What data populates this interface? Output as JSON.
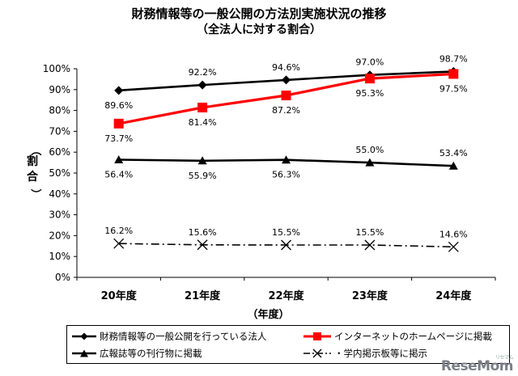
{
  "chart_data": {
    "type": "line",
    "title": "財務情報等の一般公開の方法別実施状況の推移",
    "subtitle": "（全法人に対する割合）",
    "xlabel": "（年度）",
    "ylabel": "割合",
    "ylabel_paren_open": "（",
    "ylabel_paren_close": "）",
    "categories": [
      "20年度",
      "21年度",
      "22年度",
      "23年度",
      "24年度"
    ],
    "ylim": [
      0,
      100
    ],
    "yticks": [
      "0%",
      "10%",
      "20%",
      "30%",
      "40%",
      "50%",
      "60%",
      "70%",
      "80%",
      "90%",
      "100%"
    ],
    "legend_position": "bottom",
    "series": [
      {
        "name": "財務情報等の一般公開を行っている法人",
        "values": [
          89.6,
          92.2,
          94.6,
          97.0,
          98.7
        ],
        "labels": [
          "89.6%",
          "92.2%",
          "94.6%",
          "97.0%",
          "98.7%"
        ],
        "color": "#000000",
        "marker": "diamond",
        "dash": "solid"
      },
      {
        "name": "インターネットのホームページに掲載",
        "values": [
          73.7,
          81.4,
          87.2,
          95.3,
          97.5
        ],
        "labels": [
          "73.7%",
          "81.4%",
          "87.2%",
          "95.3%",
          "97.5%"
        ],
        "color": "#ff0000",
        "marker": "square",
        "dash": "solid"
      },
      {
        "name": "広報誌等の刊行物に掲載",
        "values": [
          56.4,
          55.9,
          56.3,
          55.0,
          53.4
        ],
        "labels": [
          "56.4%",
          "55.9%",
          "56.3%",
          "55.0%",
          "53.4%"
        ],
        "color": "#000000",
        "marker": "triangle",
        "dash": "solid"
      },
      {
        "name": "学内掲示板等に掲示",
        "legend_prefix": "・",
        "values": [
          16.2,
          15.6,
          15.5,
          15.5,
          14.6
        ],
        "labels": [
          "16.2%",
          "15.6%",
          "15.5%",
          "15.5%",
          "14.6%"
        ],
        "color": "#000000",
        "marker": "x",
        "dash": "dashdot"
      }
    ]
  },
  "watermark": {
    "brand": "ReseMom",
    "sub": "リセマム"
  }
}
